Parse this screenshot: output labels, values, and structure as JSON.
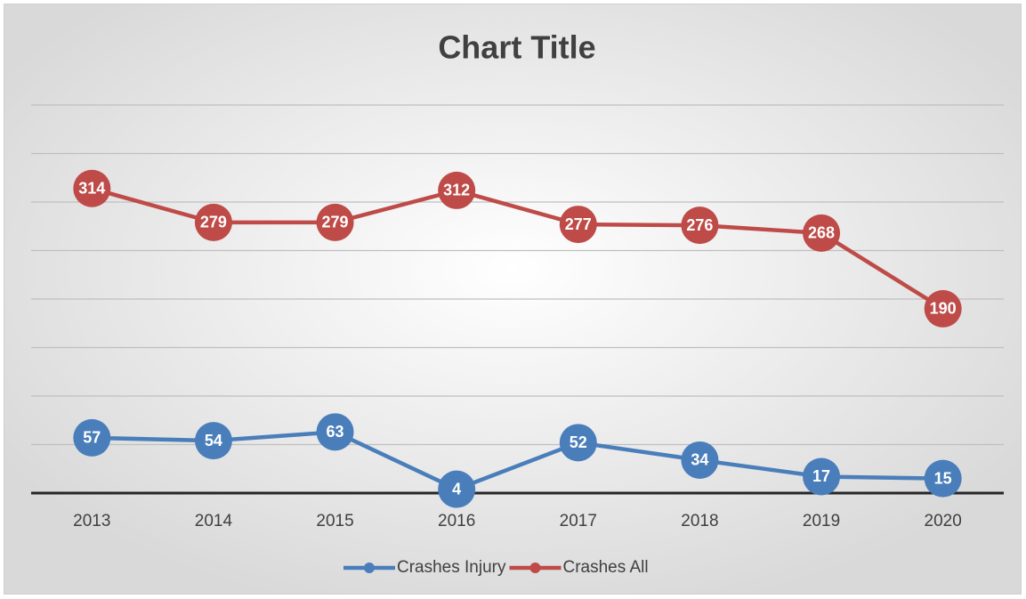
{
  "chart_data": {
    "type": "line",
    "title": "Chart Title",
    "categories": [
      "2013",
      "2014",
      "2015",
      "2016",
      "2017",
      "2018",
      "2019",
      "2020"
    ],
    "series": [
      {
        "name": "Crashes Injury",
        "color": "#4a7ebb",
        "values": [
          57,
          54,
          63,
          4,
          52,
          34,
          17,
          15
        ]
      },
      {
        "name": "Crashes All",
        "color": "#be4b48",
        "values": [
          314,
          279,
          279,
          312,
          277,
          276,
          268,
          190
        ]
      }
    ],
    "ylim": [
      0,
      400
    ],
    "yticks": [
      0,
      50,
      100,
      150,
      200,
      250,
      300,
      350,
      400
    ],
    "grid": true,
    "legend": "bottom"
  }
}
